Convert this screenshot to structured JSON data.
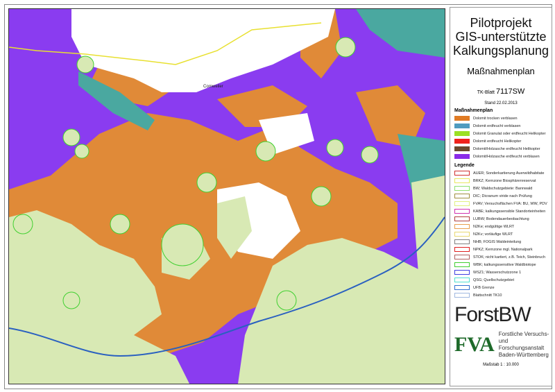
{
  "panel": {
    "title_lines": [
      "Pilotprojekt",
      "GIS-unterstützte",
      "Kalkungsplanung"
    ],
    "subtitle": "Maßnahmenplan",
    "tk_label": "TK-Blatt",
    "tk_value": "7117SW",
    "date": "Stand 22.02.2013",
    "measures_header": "Maßnahmenplan",
    "measures": [
      {
        "label": "Dolomit trocken verblasen",
        "color": "#e07b24"
      },
      {
        "label": "Dolomit erdfeucht verblasen",
        "color": "#4f9bbf"
      },
      {
        "label": "Dolomit Granulat oder erdfeucht Helikopter",
        "color": "#9be024"
      },
      {
        "label": "Dolomit erdfeucht Helikopter",
        "color": "#f0231c"
      },
      {
        "label": "Dolomit/Holzasche erdfeucht Helikopter",
        "color": "#6b4a2e"
      },
      {
        "label": "Dolomit/Holzasche erdfeucht verblasen",
        "color": "#8a2be8"
      }
    ],
    "legend_header": "Legende",
    "legend": [
      {
        "label": "AUER; Sonderkartierung Auerwildhabitate",
        "color": "#d03030"
      },
      {
        "label": "BRKZ; Kernzone Biosphärenreservat",
        "color": "#e8e860"
      },
      {
        "label": "BW; Waldschutzgebiete: Bannwald",
        "color": "#90e070"
      },
      {
        "label": "DIC; Dicranum viride nach Prüfung",
        "color": "#a09040"
      },
      {
        "label": "FVAV; Versuchsflächen FVA: BU, WW, PDV",
        "color": "#e0f080"
      },
      {
        "label": "KABE;  kalkungssensible Standorteinheiten",
        "color": "#d030b0"
      },
      {
        "label": "LUBW; Bodendauerbeobachtung",
        "color": "#b04040"
      },
      {
        "label": "N2Ke; endgültige WLRT",
        "color": "#e8a050"
      },
      {
        "label": "N2Kv; vorläufige WLRT",
        "color": "#e8d870"
      },
      {
        "label": "NHB; FOGIS Waldeinteilung",
        "color": "#808080"
      },
      {
        "label": "NPKZ; Kernzone mgl. Nationalpark",
        "color": "#e02020"
      },
      {
        "label": "STOK; nicht kartiert, z.B. Teich, Steinbruch",
        "color": "#b06060"
      },
      {
        "label": "WBK; kalkungssensitive Waldbiotope",
        "color": "#40d030"
      },
      {
        "label": "WSZ1; Wasserschutzzone 1",
        "color": "#4040e0"
      },
      {
        "label": "QSG; Quellschutzgebiet",
        "color": "#50e0d0"
      },
      {
        "label": "UFB Grenze",
        "color": "#3070d0"
      },
      {
        "label": "Blattschnitt TK10",
        "color": "#a0b8e0"
      }
    ],
    "logo_forstbw": "ForstBW",
    "logo_fva": "FVA",
    "fva_lines": [
      "Forstliche Versuchs-",
      "und Forschungsanstalt",
      "Baden-Württemberg"
    ],
    "scale": "Maßstab 1 : 10.000"
  },
  "map": {
    "town_label": "Cornweiler",
    "colors": {
      "purple": "#8a3cf0",
      "orange": "#e08a38",
      "teal": "#4aa8a0",
      "forest": "#d8e9b4",
      "town": "#ffffff"
    }
  }
}
